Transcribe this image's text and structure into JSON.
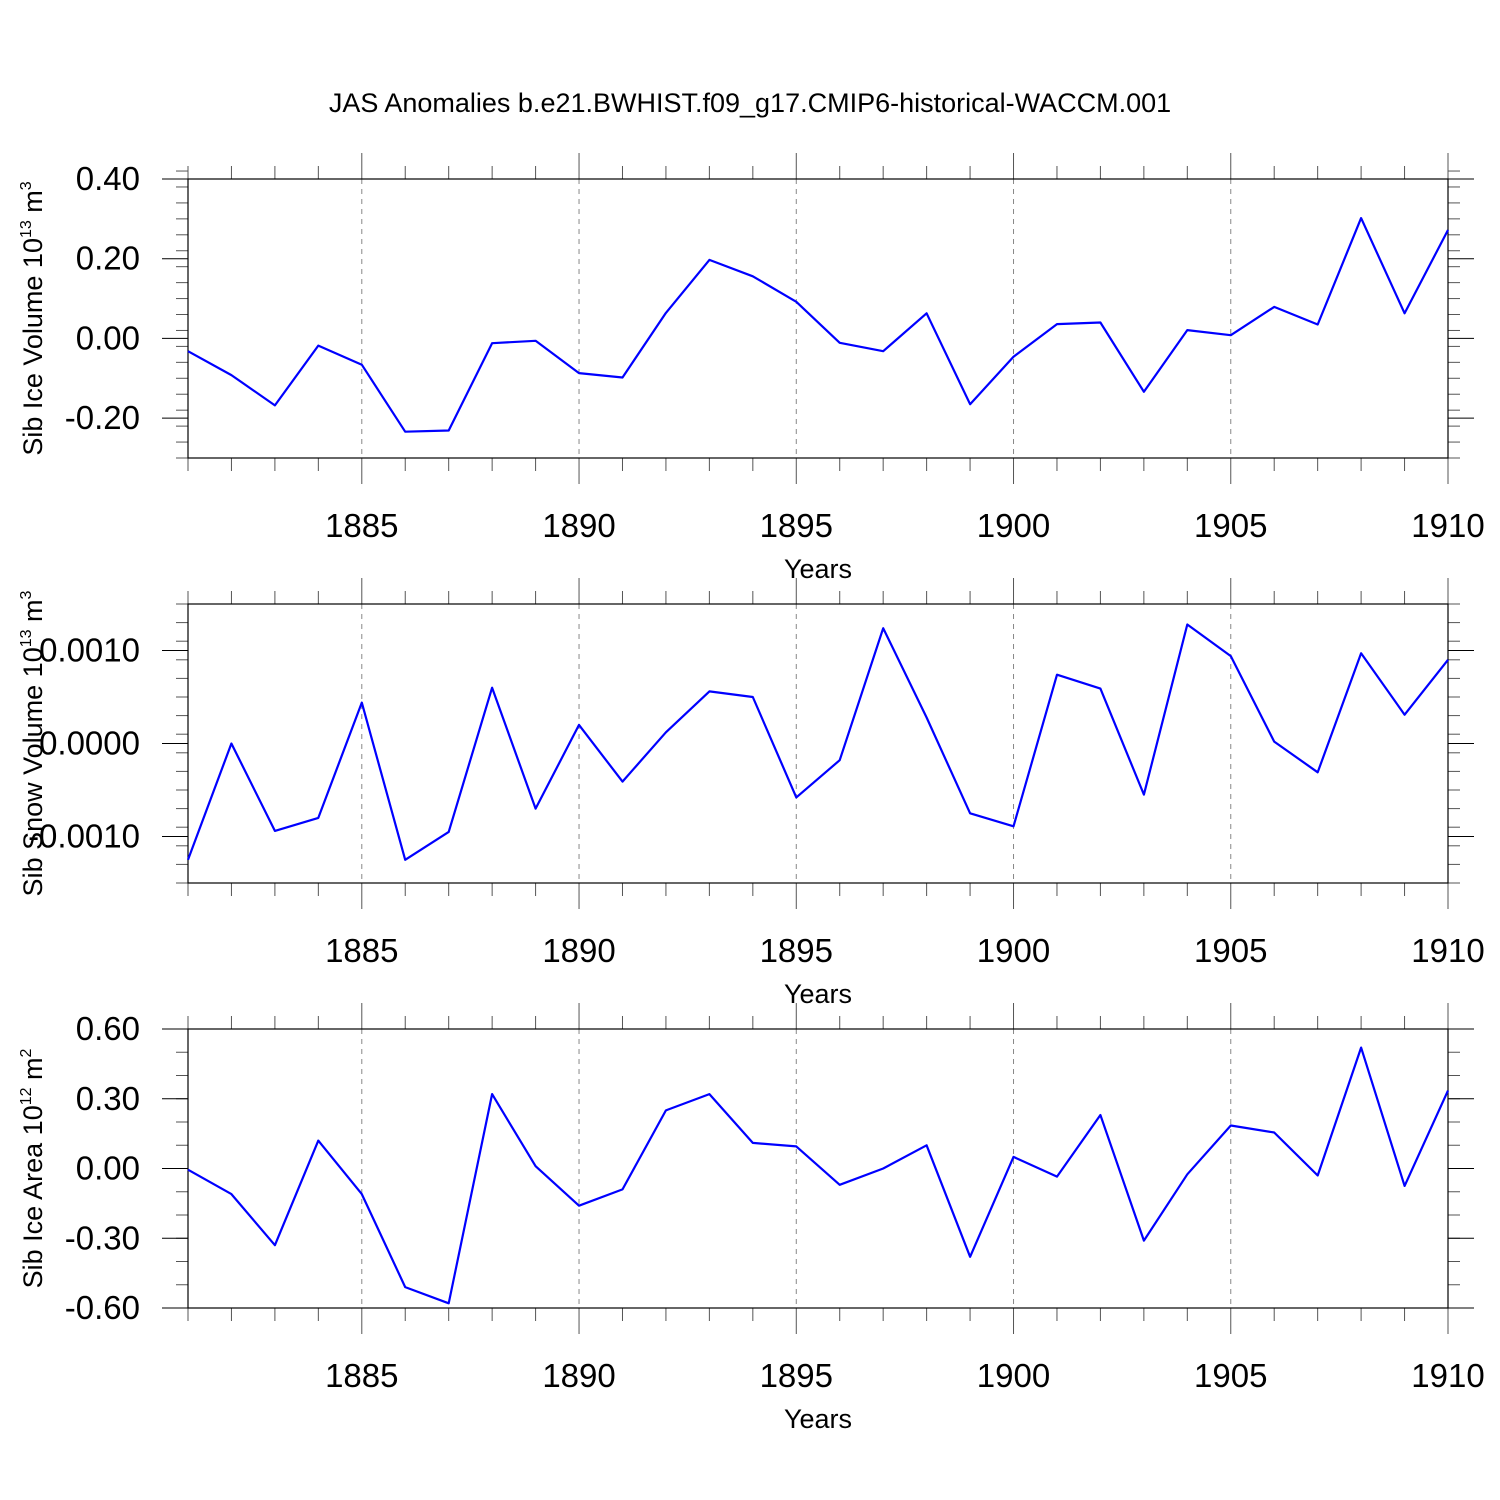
{
  "title": "JAS Anomalies b.e21.BWHIST.f09_g17.CMIP6-historical-WACCM.001",
  "chart_data": [
    {
      "type": "line",
      "xlabel": "Years",
      "ylabel": {
        "text": "Sib Ice Volume 10",
        "exp": "13",
        "unit": " m",
        "unit_exp": "3"
      },
      "xlim": [
        1881,
        1910
      ],
      "ylim": [
        -0.3,
        0.4
      ],
      "major_yticks": [
        -0.2,
        0.0,
        0.2,
        0.4
      ],
      "ytick_labels": [
        "-0.20",
        "0.00",
        "0.20",
        "0.40"
      ],
      "minor_ystep": 0.04,
      "xticks": [
        1885,
        1890,
        1895,
        1900,
        1905,
        1910
      ],
      "xtick_labels": [
        "1885",
        "1890",
        "1895",
        "1900",
        "1905",
        "1910"
      ],
      "grid": "vertical dashed at major x ticks",
      "line_color": "#0000ff",
      "x": [
        1881,
        1882,
        1883,
        1884,
        1885,
        1886,
        1887,
        1888,
        1889,
        1890,
        1891,
        1892,
        1893,
        1894,
        1895,
        1896,
        1897,
        1898,
        1899,
        1900,
        1901,
        1902,
        1903,
        1904,
        1905,
        1906,
        1907,
        1908,
        1909,
        1910
      ],
      "y": [
        -0.032,
        -0.092,
        -0.168,
        -0.018,
        -0.066,
        -0.234,
        -0.231,
        -0.012,
        -0.006,
        -0.087,
        -0.098,
        0.064,
        0.197,
        0.156,
        0.092,
        -0.011,
        -0.032,
        0.063,
        -0.165,
        -0.046,
        0.036,
        0.04,
        -0.134,
        0.021,
        0.008,
        0.079,
        0.035,
        0.302,
        0.063,
        0.272
      ]
    },
    {
      "type": "line",
      "xlabel": "Years",
      "ylabel": {
        "text": "Sib Snow Volume 10",
        "exp": "13",
        "unit": " m",
        "unit_exp": "3"
      },
      "xlim": [
        1881,
        1910
      ],
      "ylim": [
        -0.0015,
        0.0015
      ],
      "major_yticks": [
        -0.001,
        0.0,
        0.001
      ],
      "ytick_labels": [
        "-0.0010",
        "0.0000",
        "0.0010"
      ],
      "minor_ystep": 0.0002,
      "xticks": [
        1885,
        1890,
        1895,
        1900,
        1905,
        1910
      ],
      "xtick_labels": [
        "1885",
        "1890",
        "1895",
        "1900",
        "1905",
        "1910"
      ],
      "grid": "vertical dashed at major x ticks",
      "line_color": "#0000ff",
      "x": [
        1881,
        1882,
        1883,
        1884,
        1885,
        1886,
        1887,
        1888,
        1889,
        1890,
        1891,
        1892,
        1893,
        1894,
        1895,
        1896,
        1897,
        1898,
        1899,
        1900,
        1901,
        1902,
        1903,
        1904,
        1905,
        1906,
        1907,
        1908,
        1909,
        1910
      ],
      "y": [
        -0.00125,
        0.0,
        -0.00094,
        -0.0008,
        0.00044,
        -0.00125,
        -0.00095,
        0.0006,
        -0.0007,
        0.0002,
        -0.00041,
        0.00012,
        0.00056,
        0.0005,
        -0.00058,
        -0.00018,
        0.00124,
        0.00028,
        -0.00075,
        -0.00089,
        0.00074,
        0.00059,
        -0.00055,
        0.00128,
        0.00094,
        2e-05,
        -0.00031,
        0.00097,
        0.00031,
        0.0009
      ]
    },
    {
      "type": "line",
      "xlabel": "Years",
      "ylabel": {
        "text": "Sib Ice Area 10",
        "exp": "12",
        "unit": " m",
        "unit_exp": "2"
      },
      "xlim": [
        1881,
        1910
      ],
      "ylim": [
        -0.6,
        0.6
      ],
      "major_yticks": [
        -0.6,
        -0.3,
        0.0,
        0.3,
        0.6
      ],
      "ytick_labels": [
        "-0.60",
        "-0.30",
        "0.00",
        "0.30",
        "0.60"
      ],
      "minor_ystep": 0.1,
      "xticks": [
        1885,
        1890,
        1895,
        1900,
        1905,
        1910
      ],
      "xtick_labels": [
        "1885",
        "1890",
        "1895",
        "1900",
        "1905",
        "1910"
      ],
      "grid": "vertical dashed at major x ticks",
      "line_color": "#0000ff",
      "x": [
        1881,
        1882,
        1883,
        1884,
        1885,
        1886,
        1887,
        1888,
        1889,
        1890,
        1891,
        1892,
        1893,
        1894,
        1895,
        1896,
        1897,
        1898,
        1899,
        1900,
        1901,
        1902,
        1903,
        1904,
        1905,
        1906,
        1907,
        1908,
        1909,
        1910
      ],
      "y": [
        -0.005,
        -0.11,
        -0.33,
        0.12,
        -0.11,
        -0.51,
        -0.58,
        0.32,
        0.01,
        -0.16,
        -0.09,
        0.25,
        0.32,
        0.11,
        0.095,
        -0.07,
        0.0,
        0.1,
        -0.38,
        0.05,
        -0.035,
        0.23,
        -0.31,
        -0.025,
        0.185,
        0.155,
        -0.03,
        0.52,
        -0.075,
        0.335
      ]
    }
  ]
}
